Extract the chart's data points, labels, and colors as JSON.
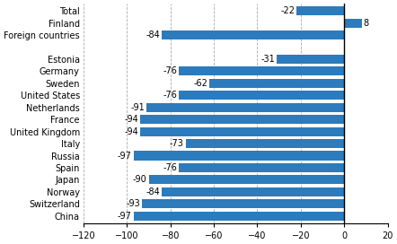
{
  "categories": [
    "China",
    "Switzerland",
    "Norway",
    "Japan",
    "Spain",
    "Russia",
    "Italy",
    "United Kingdom",
    "France",
    "Netherlands",
    "United States",
    "Sweden",
    "Germany",
    "Estonia",
    "",
    "Foreign countries",
    "Finland",
    "Total"
  ],
  "values": [
    -97,
    -93,
    -84,
    -90,
    -76,
    -97,
    -73,
    -94,
    -94,
    -91,
    -76,
    -62,
    -76,
    -31,
    null,
    -84,
    8,
    -22
  ],
  "bar_color": "#2B7BBD",
  "xlim": [
    -120,
    20
  ],
  "xticks": [
    -120,
    -100,
    -80,
    -60,
    -40,
    -20,
    0,
    20
  ],
  "label_fontsize": 7.0,
  "tick_fontsize": 7.0,
  "bar_height": 0.75,
  "figsize": [
    4.42,
    2.72
  ],
  "dpi": 100
}
